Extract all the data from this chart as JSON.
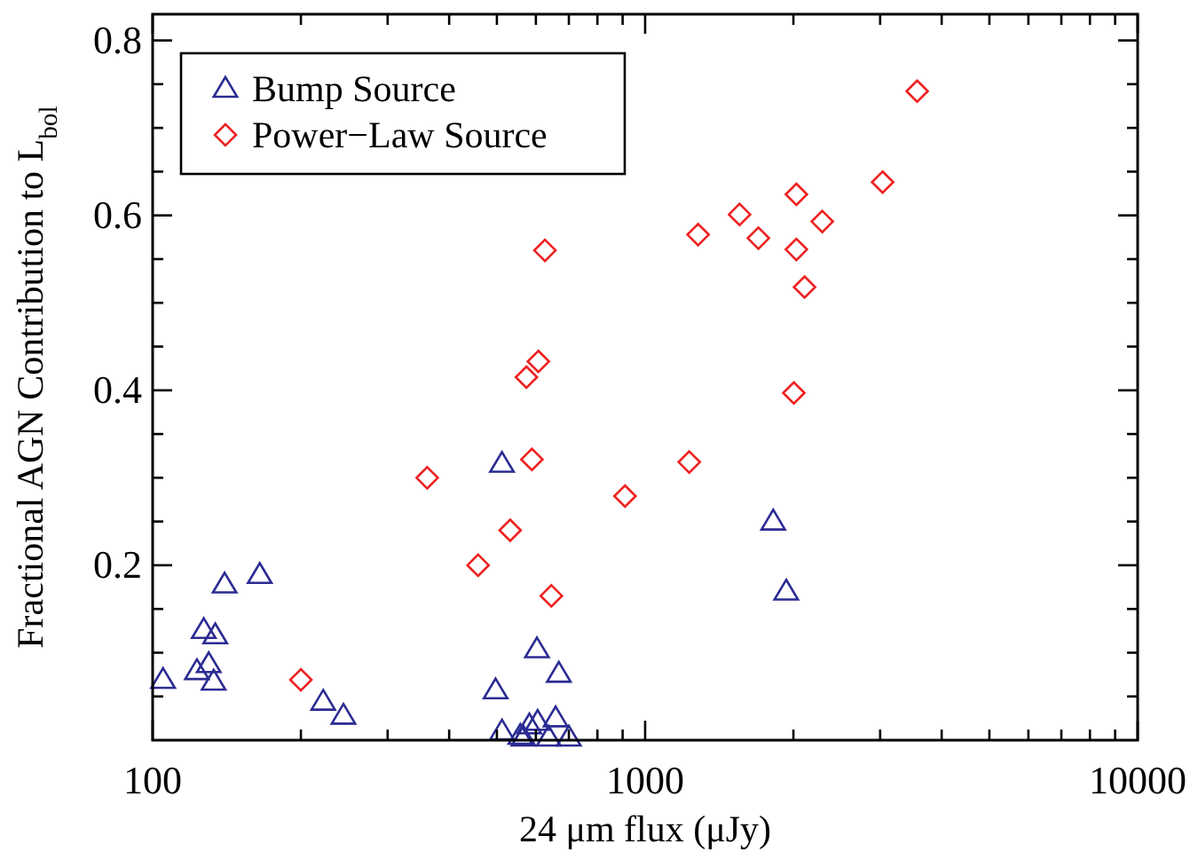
{
  "chart_data": {
    "type": "scatter",
    "xlabel": "24 μm flux (μJy)",
    "ylabel": "Fractional AGN Contribution to L$_{bol}$",
    "log": "x",
    "xlim": [
      100,
      10000
    ],
    "ylim": [
      0,
      0.83
    ],
    "xticks": [
      100,
      {
        "value": 200,
        "label": null
      },
      {
        "value": 300,
        "label": null
      },
      {
        "value": 400,
        "label": null
      },
      {
        "value": 500,
        "label": null
      },
      {
        "value": 600,
        "label": null
      },
      {
        "value": 700,
        "label": null
      },
      {
        "value": 800,
        "label": null
      },
      {
        "value": 900,
        "label": null
      },
      1000,
      {
        "value": 2000,
        "label": null
      },
      {
        "value": 3000,
        "label": null
      },
      {
        "value": 4000,
        "label": null
      },
      {
        "value": 5000,
        "label": null
      },
      {
        "value": 6000,
        "label": null
      },
      {
        "value": 7000,
        "label": null
      },
      {
        "value": 8000,
        "label": null
      },
      {
        "value": 9000,
        "label": null
      },
      10000
    ],
    "yticks": [
      {
        "value": 0.05,
        "label": null
      },
      {
        "value": 0.1,
        "label": null
      },
      {
        "value": 0.15,
        "label": null
      },
      0.2,
      {
        "value": 0.25,
        "label": null
      },
      {
        "value": 0.3,
        "label": null
      },
      {
        "value": 0.35,
        "label": null
      },
      0.4,
      {
        "value": 0.45,
        "label": null
      },
      {
        "value": 0.5,
        "label": null
      },
      {
        "value": 0.55,
        "label": null
      },
      0.6,
      {
        "value": 0.65,
        "label": null
      },
      {
        "value": 0.7,
        "label": null
      },
      {
        "value": 0.75,
        "label": null
      },
      0.8
    ],
    "grid": false,
    "legend": "top left",
    "series": [
      {
        "name": "Bump Source",
        "color": "#2b2b93",
        "marker": "triangle",
        "x": [
          105,
          123,
          130,
          133,
          127,
          134,
          140,
          165,
          222,
          244,
          512,
          497,
          512,
          603,
          668,
          658,
          605,
          582,
          558,
          566,
          637,
          700,
          1820,
          1934
        ],
        "values": [
          0.069,
          0.079,
          0.087,
          0.067,
          0.126,
          0.12,
          0.178,
          0.189,
          0.044,
          0.028,
          0.316,
          0.057,
          0.01,
          0.104,
          0.076,
          0.025,
          0.021,
          0.017,
          0.005,
          0.003,
          0.003,
          0.003,
          0.25,
          0.17
        ]
      },
      {
        "name": "Power−Law Source",
        "color": "#ee2020",
        "marker": "diamond",
        "x": [
          361,
          589,
          532,
          458,
          645,
          200,
          910,
          626,
          607,
          574,
          3567,
          3035,
          2028,
          1555,
          2289,
          1281,
          1698,
          2028,
          2107,
          2004,
          1229
        ],
        "values": [
          0.3,
          0.321,
          0.24,
          0.2,
          0.165,
          0.069,
          0.279,
          0.56,
          0.433,
          0.415,
          0.742,
          0.638,
          0.624,
          0.601,
          0.593,
          0.578,
          0.574,
          0.561,
          0.518,
          0.397,
          0.318
        ]
      }
    ]
  }
}
